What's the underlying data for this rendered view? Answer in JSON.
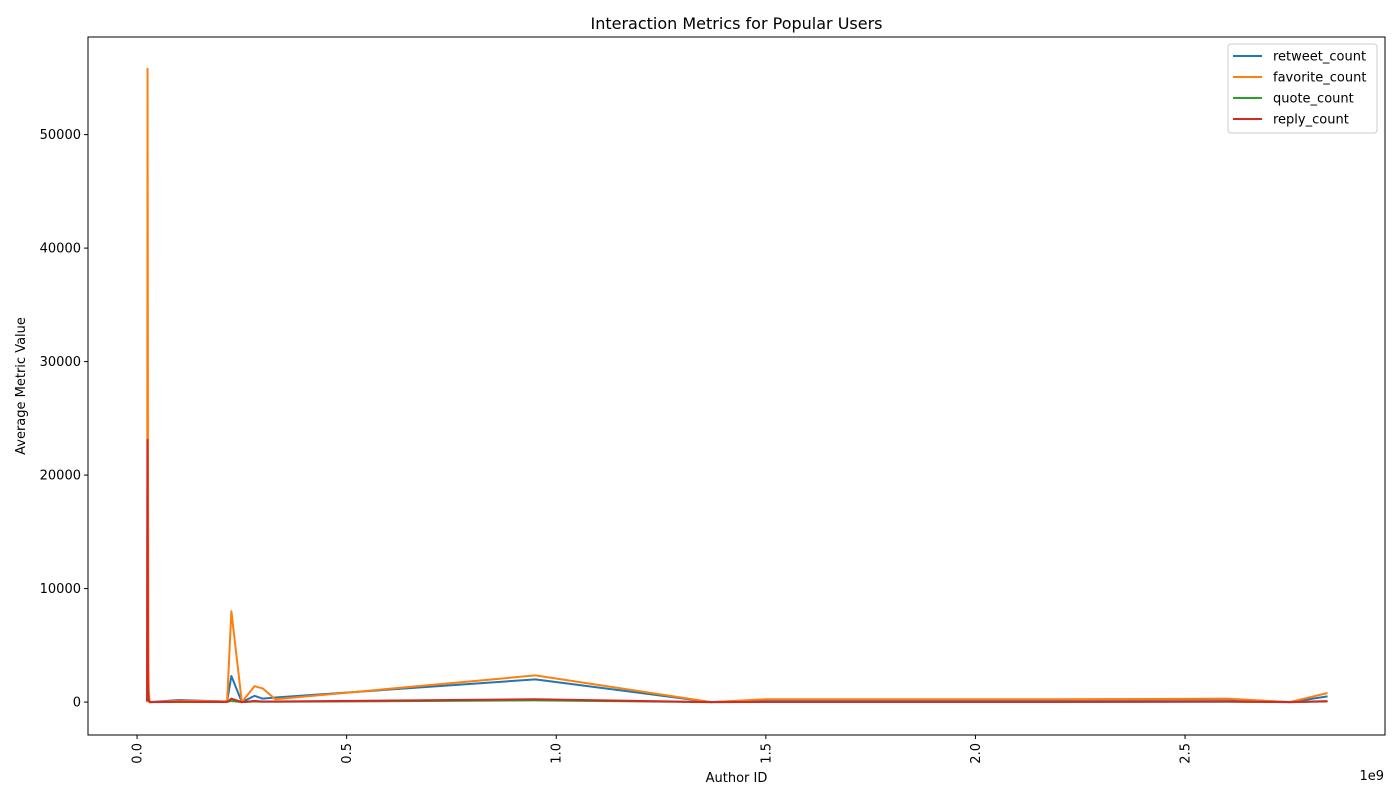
{
  "chart_data": {
    "type": "line",
    "title": "Interaction Metrics for Popular Users",
    "xlabel": "Author ID",
    "ylabel": "Average Metric Value",
    "x_offset_label": "1e9",
    "xlim": [
      -0.117,
      2.977
    ],
    "ylim": [
      -2900,
      58600
    ],
    "x_ticks": [
      0.0,
      0.5,
      1.0,
      1.5,
      2.0,
      2.5
    ],
    "x_tick_labels": [
      "0.0",
      "0.5",
      "1.0",
      "1.5",
      "2.0",
      "2.5"
    ],
    "y_ticks": [
      0,
      10000,
      20000,
      30000,
      40000,
      50000
    ],
    "y_tick_labels": [
      "0",
      "10000",
      "20000",
      "30000",
      "40000",
      "50000"
    ],
    "grid": false,
    "legend_position": "top-right",
    "x": [
      0.024,
      0.025,
      0.026,
      0.027,
      0.028,
      0.03,
      0.1,
      0.21,
      0.215,
      0.225,
      0.25,
      0.28,
      0.3,
      0.33,
      0.95,
      1.37,
      1.5,
      2.2,
      2.6,
      2.75,
      2.84
    ],
    "series": [
      {
        "name": "retweet_count",
        "color": "#1f77b4",
        "values": [
          0,
          20000,
          7000,
          2000,
          500,
          0,
          180,
          50,
          100,
          2300,
          0,
          550,
          300,
          400,
          2000,
          0,
          200,
          200,
          250,
          0,
          500
        ]
      },
      {
        "name": "favorite_count",
        "color": "#ff7f0e",
        "values": [
          0,
          55800,
          23000,
          4000,
          1000,
          0,
          120,
          60,
          150,
          8000,
          0,
          1400,
          1200,
          250,
          2350,
          0,
          250,
          250,
          300,
          0,
          800
        ]
      },
      {
        "name": "quote_count",
        "color": "#2ca02c",
        "values": [
          500,
          2000,
          1500,
          600,
          200,
          0,
          20,
          10,
          20,
          100,
          0,
          50,
          30,
          30,
          150,
          0,
          20,
          20,
          30,
          0,
          50
        ]
      },
      {
        "name": "reply_count",
        "color": "#d62728",
        "values": [
          100,
          23100,
          1000,
          300,
          100,
          0,
          30,
          10,
          20,
          300,
          0,
          100,
          50,
          50,
          250,
          0,
          20,
          20,
          50,
          0,
          80
        ]
      }
    ]
  }
}
